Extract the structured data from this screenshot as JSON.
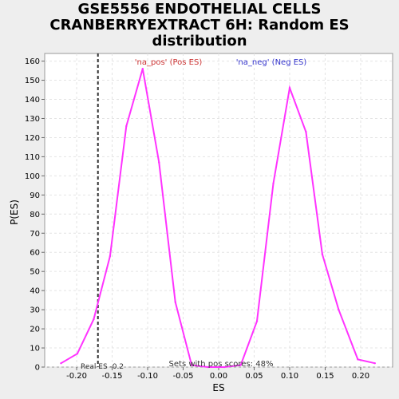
{
  "title_lines": [
    "GSE5556 ENDOTHELIAL CELLS",
    "CRANBERRYEXTRACT 6H: Random ES",
    "distribution"
  ],
  "colors": {
    "series": "#ff33ff",
    "pos_legend": "#cc3333",
    "neg_legend": "#3333cc",
    "real_es_line": "#333333"
  },
  "chart_data": {
    "type": "line",
    "title": "GSE5556 ENDOTHELIAL CELLS CRANBERRYEXTRACT 6H: Random ES distribution",
    "xlabel": "ES",
    "ylabel": "P(ES)",
    "xlim": [
      -0.245,
      0.245
    ],
    "ylim": [
      0,
      164
    ],
    "xticks": [
      -0.2,
      -0.15,
      -0.1,
      -0.05,
      0.0,
      0.05,
      0.1,
      0.15,
      0.2
    ],
    "xtick_labels": [
      "-0.20",
      "-0.15",
      "-0.10",
      "-0.05",
      "0.00",
      "0.05",
      "0.10",
      "0.15",
      "0.20"
    ],
    "yticks": [
      0,
      10,
      20,
      30,
      40,
      50,
      60,
      70,
      80,
      90,
      100,
      110,
      120,
      130,
      140,
      150,
      160
    ],
    "grid": true,
    "series": [
      {
        "x": [
          -0.222,
          -0.199,
          -0.176,
          -0.153,
          -0.13,
          -0.107,
          -0.084,
          -0.061,
          -0.038,
          -0.015,
          0.008,
          0.031,
          0.054,
          0.077,
          0.1,
          0.123,
          0.146,
          0.169,
          0.196,
          0.22
        ],
        "values": [
          2,
          7,
          25,
          58,
          126,
          156,
          107,
          34,
          1,
          0,
          0,
          1,
          24,
          96,
          146,
          123,
          59,
          30,
          4,
          2
        ]
      }
    ],
    "legend": [
      "'na_pos' (Pos ES)",
      "'na_neg' (Neg ES)"
    ],
    "real_es": {
      "value": -0.17,
      "label": "Real ES -0.2"
    },
    "annotation": "Sets with pos scores: 48%"
  }
}
